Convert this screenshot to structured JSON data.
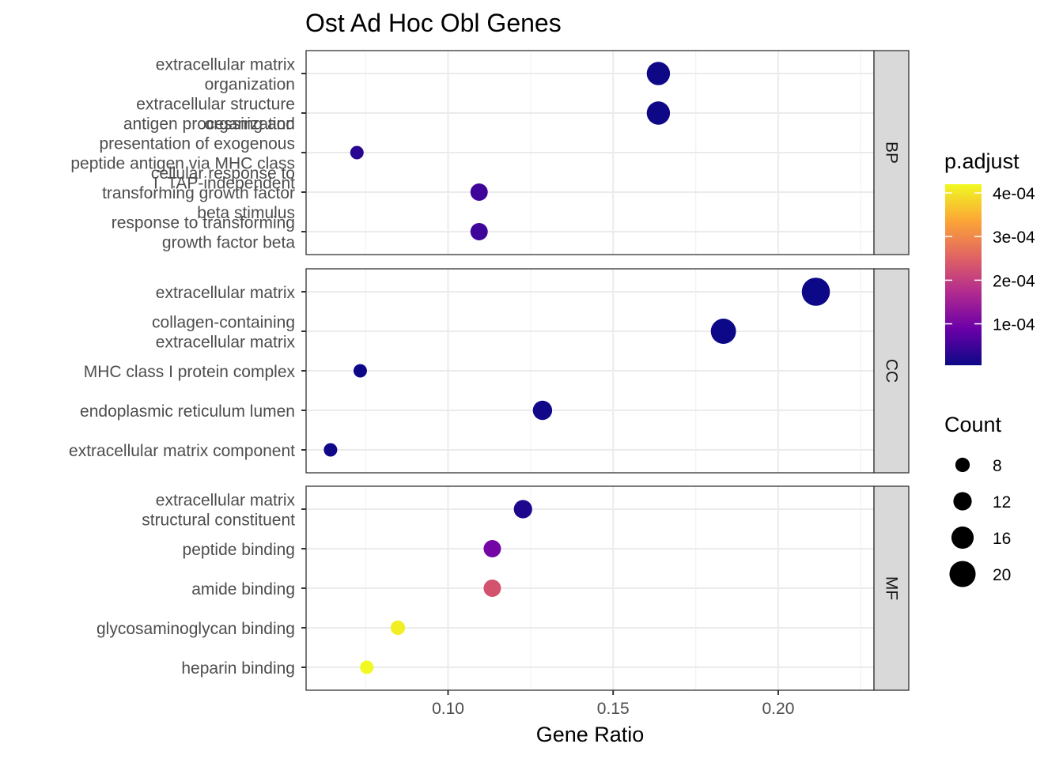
{
  "chart_data": {
    "type": "scatter",
    "title": "Ost Ad Hoc Obl Genes",
    "xlabel": "Gene Ratio",
    "ylabel": "",
    "xlim": [
      0.057,
      0.229
    ],
    "x_ticks": [
      "0.10",
      "0.15",
      "0.20"
    ],
    "x_tick_values": [
      0.1,
      0.15,
      0.2
    ],
    "grid": true,
    "legend_position": "right",
    "color_legend": {
      "title": "p.adjust",
      "range": [
        5e-06,
        0.00042
      ],
      "ticks": [
        "1e-04",
        "2e-04",
        "3e-04",
        "4e-04"
      ],
      "tick_values": [
        0.0001,
        0.0002,
        0.0003,
        0.0004
      ],
      "colors": [
        "#0d0887",
        "#6a00a8",
        "#b12a90",
        "#e16462",
        "#fca636",
        "#f0f921"
      ]
    },
    "size_legend": {
      "title": "Count",
      "ticks": [
        "8",
        "12",
        "16",
        "20"
      ],
      "tick_values": [
        8,
        12,
        16,
        20
      ]
    },
    "facets": [
      {
        "strip": "BP",
        "terms": [
          {
            "label": [
              "extracellular matrix",
              "organization"
            ],
            "x": 0.1637,
            "count": 17,
            "padj": 6e-06
          },
          {
            "label": [
              "extracellular structure",
              "organization"
            ],
            "x": 0.1637,
            "count": 17,
            "padj": 6e-06
          },
          {
            "label": [
              "antigen processing and",
              "presentation of exogenous",
              "peptide antigen via MHC class",
              "I, TAP-independent"
            ],
            "x": 0.0724,
            "count": 7,
            "padj": 3e-05
          },
          {
            "label": [
              "cellular response to",
              "transforming growth factor",
              "beta stimulus"
            ],
            "x": 0.1094,
            "count": 11,
            "padj": 5e-05
          },
          {
            "label": [
              "response to transforming",
              "growth factor beta"
            ],
            "x": 0.1094,
            "count": 11,
            "padj": 5e-05
          }
        ]
      },
      {
        "strip": "CC",
        "terms": [
          {
            "label": [
              "extracellular matrix"
            ],
            "x": 0.2114,
            "count": 22,
            "padj": 2e-06
          },
          {
            "label": [
              "collagen-containing",
              "extracellular matrix"
            ],
            "x": 0.1834,
            "count": 19,
            "padj": 2e-06
          },
          {
            "label": [
              "MHC class I protein complex"
            ],
            "x": 0.0734,
            "count": 7,
            "padj": 5e-06
          },
          {
            "label": [
              "endoplasmic reticulum lumen"
            ],
            "x": 0.1286,
            "count": 13,
            "padj": 8e-06
          },
          {
            "label": [
              "extracellular matrix component"
            ],
            "x": 0.0644,
            "count": 7,
            "padj": 8e-06
          }
        ]
      },
      {
        "strip": "MF",
        "terms": [
          {
            "label": [
              "extracellular matrix",
              "structural constituent"
            ],
            "x": 0.1227,
            "count": 12,
            "padj": 2e-05
          },
          {
            "label": [
              "peptide binding"
            ],
            "x": 0.1134,
            "count": 11,
            "padj": 0.0001
          },
          {
            "label": [
              "amide binding"
            ],
            "x": 0.1134,
            "count": 11,
            "padj": 0.00023
          },
          {
            "label": [
              "glycosaminoglycan binding"
            ],
            "x": 0.0848,
            "count": 8,
            "padj": 0.00041
          },
          {
            "label": [
              "heparin binding"
            ],
            "x": 0.0754,
            "count": 7,
            "padj": 0.00042
          }
        ]
      }
    ]
  }
}
